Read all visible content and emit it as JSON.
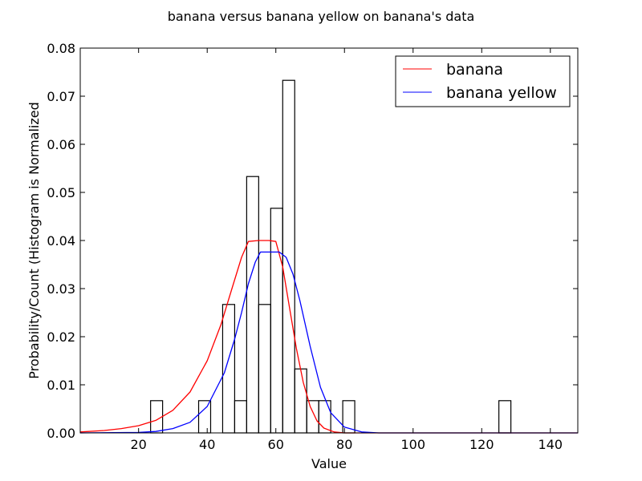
{
  "chart_data": {
    "type": "histogram-with-curves",
    "title": "banana versus banana yellow on banana's data",
    "xlabel": "Value",
    "ylabel": "Probability/Count (Histogram is Normalized",
    "xlim": [
      3,
      148
    ],
    "ylim": [
      0,
      0.08
    ],
    "xticks": [
      20,
      40,
      60,
      80,
      100,
      120,
      140
    ],
    "xtick_labels": [
      "20",
      "40",
      "60",
      "80",
      "100",
      "120",
      "140"
    ],
    "yticks": [
      0.0,
      0.01,
      0.02,
      0.03,
      0.04,
      0.05,
      0.06,
      0.07,
      0.08
    ],
    "ytick_labels": [
      "0.00",
      "0.01",
      "0.02",
      "0.03",
      "0.04",
      "0.05",
      "0.06",
      "0.07",
      "0.08"
    ],
    "legend_position": "top-right",
    "histogram": {
      "bin_width": 3.5,
      "bins": [
        {
          "start": 23.5,
          "value": 0.0067
        },
        {
          "start": 37.5,
          "value": 0.0067
        },
        {
          "start": 44.5,
          "value": 0.0267
        },
        {
          "start": 48.0,
          "value": 0.0067
        },
        {
          "start": 51.5,
          "value": 0.0533
        },
        {
          "start": 55.0,
          "value": 0.0267
        },
        {
          "start": 58.5,
          "value": 0.0467
        },
        {
          "start": 62.0,
          "value": 0.0733
        },
        {
          "start": 65.5,
          "value": 0.0133
        },
        {
          "start": 69.0,
          "value": 0.0067
        },
        {
          "start": 72.5,
          "value": 0.0067
        },
        {
          "start": 79.5,
          "value": 0.0067
        },
        {
          "start": 125.0,
          "value": 0.0067
        }
      ]
    },
    "series": [
      {
        "name": "banana",
        "color": "#ff0000",
        "points": [
          [
            3,
            0.0002
          ],
          [
            10,
            0.0005
          ],
          [
            15,
            0.0009
          ],
          [
            20,
            0.0015
          ],
          [
            25,
            0.0026
          ],
          [
            30,
            0.0047
          ],
          [
            35,
            0.0085
          ],
          [
            40,
            0.015
          ],
          [
            44,
            0.0225
          ],
          [
            47,
            0.0295
          ],
          [
            50,
            0.0365
          ],
          [
            52,
            0.0398
          ],
          [
            55,
            0.04
          ],
          [
            58,
            0.04
          ],
          [
            60,
            0.0398
          ],
          [
            62,
            0.0345
          ],
          [
            64,
            0.026
          ],
          [
            66,
            0.0175
          ],
          [
            68,
            0.0105
          ],
          [
            70,
            0.0055
          ],
          [
            72,
            0.0025
          ],
          [
            74,
            0.001
          ],
          [
            77,
            0.0002
          ],
          [
            80,
            0.0
          ],
          [
            148,
            0.0
          ]
        ]
      },
      {
        "name": "banana yellow",
        "color": "#0000ff",
        "points": [
          [
            3,
            0.0
          ],
          [
            20,
            0.0001
          ],
          [
            25,
            0.0003
          ],
          [
            30,
            0.0009
          ],
          [
            35,
            0.0022
          ],
          [
            40,
            0.0055
          ],
          [
            45,
            0.0125
          ],
          [
            48,
            0.0195
          ],
          [
            50,
            0.025
          ],
          [
            52,
            0.031
          ],
          [
            54,
            0.0355
          ],
          [
            55.5,
            0.0376
          ],
          [
            58,
            0.0376
          ],
          [
            61,
            0.0376
          ],
          [
            63,
            0.0365
          ],
          [
            65,
            0.033
          ],
          [
            67,
            0.0275
          ],
          [
            70,
            0.018
          ],
          [
            73,
            0.0095
          ],
          [
            76,
            0.0042
          ],
          [
            80,
            0.0012
          ],
          [
            85,
            0.0002
          ],
          [
            90,
            0.0
          ],
          [
            148,
            0.0
          ]
        ]
      }
    ]
  }
}
